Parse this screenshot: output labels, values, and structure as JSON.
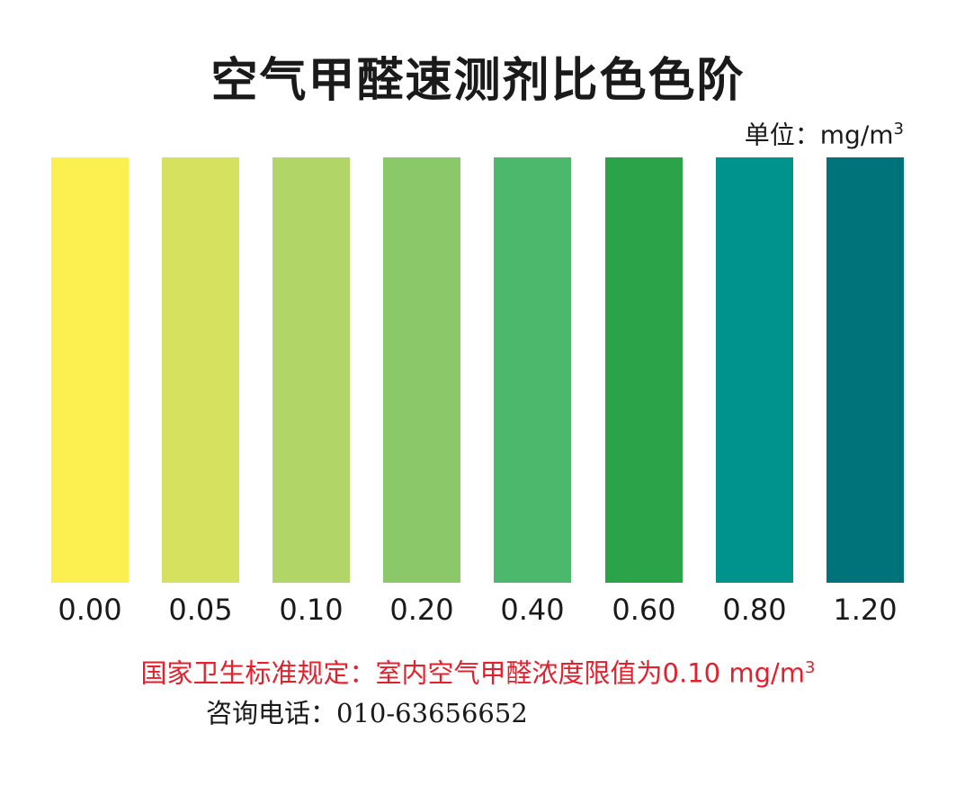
{
  "title": "空气甲醛速测剂比色色阶",
  "unit": {
    "label": "单位：mg/m",
    "superscript": "3"
  },
  "scale": [
    {
      "value": "0.00",
      "color": "#fcf051"
    },
    {
      "value": "0.05",
      "color": "#d6e160"
    },
    {
      "value": "0.10",
      "color": "#b1d567"
    },
    {
      "value": "0.20",
      "color": "#8bc86a"
    },
    {
      "value": "0.40",
      "color": "#4cb86b"
    },
    {
      "value": "0.60",
      "color": "#2ba449"
    },
    {
      "value": "0.80",
      "color": "#00928d"
    },
    {
      "value": "1.20",
      "color": "#00727a"
    }
  ],
  "notice": {
    "text": "国家卫生标准规定：室内空气甲醛浓度限值为0.10 mg/m",
    "superscript": "3"
  },
  "contact": {
    "label": "咨询电话：",
    "number": "010-63656652"
  }
}
